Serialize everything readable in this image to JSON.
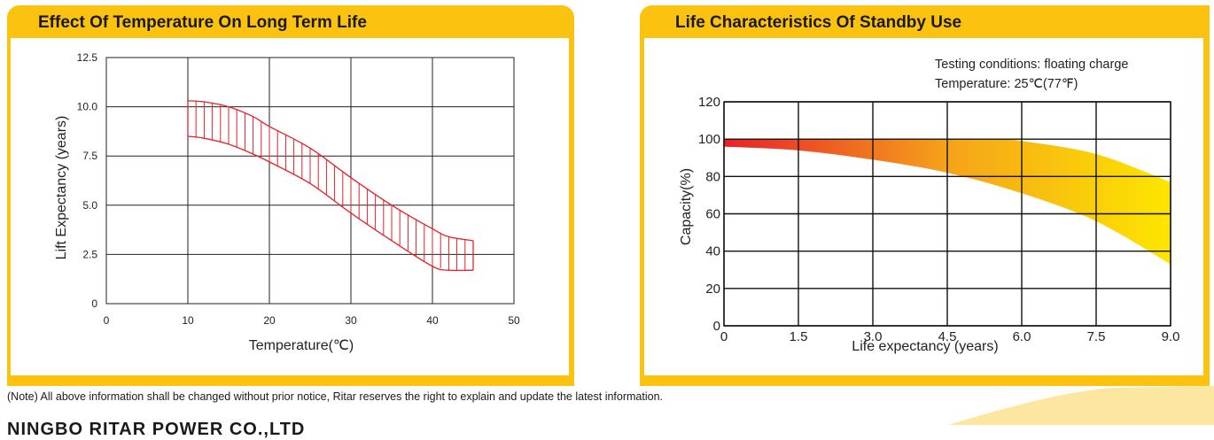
{
  "note": "(Note) All above information shall be changed without prior notice, Ritar reserves the right to explain and update the latest information.",
  "company": "NINGBO RITAR POWER CO.,LTD",
  "colors": {
    "accent": "#fbc20f",
    "band_red": "#e8202a",
    "grad_start": "#e8202a",
    "grad_mid": "#f5a31a",
    "grad_end": "#fde600"
  },
  "chart_data": [
    {
      "type": "area",
      "title": "Effect Of Temperature On Long Term Life",
      "xlabel": "Temperature(℃)",
      "ylabel": "Lift Expectancy  (years)",
      "xlim": [
        0,
        50
      ],
      "ylim": [
        0,
        12.5
      ],
      "x_ticks": [
        "0",
        "10",
        "20",
        "30",
        "40",
        "50"
      ],
      "y_ticks": [
        "0",
        "2.5",
        "5.0",
        "7.5",
        "10.0",
        "12.5"
      ],
      "grid": true,
      "series": [
        {
          "name": "upper",
          "x": [
            10,
            12,
            15,
            18,
            20,
            25,
            30,
            35,
            40,
            42,
            45
          ],
          "values": [
            10.3,
            10.25,
            10.0,
            9.5,
            9.0,
            7.9,
            6.4,
            5.0,
            3.8,
            3.4,
            3.2
          ]
        },
        {
          "name": "lower",
          "x": [
            10,
            12,
            15,
            18,
            20,
            25,
            30,
            35,
            40,
            42,
            45
          ],
          "values": [
            8.5,
            8.4,
            8.1,
            7.6,
            7.2,
            6.1,
            4.6,
            3.2,
            1.9,
            1.7,
            1.7
          ]
        }
      ]
    },
    {
      "type": "area",
      "title": "Life Characteristics Of Standby Use",
      "annotations": [
        "Testing conditions: floating charge",
        "Temperature: 25℃(77℉)"
      ],
      "xlabel": "Life expectancy (years)",
      "ylabel": "Capacity(%)",
      "xlim": [
        0,
        9.0
      ],
      "ylim": [
        0,
        120
      ],
      "x_ticks": [
        "0",
        "1.5",
        "3.0",
        "4.5",
        "6.0",
        "7.5",
        "9.0"
      ],
      "y_ticks": [
        "0",
        "20",
        "40",
        "60",
        "80",
        "100",
        "120"
      ],
      "grid": true,
      "series": [
        {
          "name": "upper",
          "x": [
            0,
            1.5,
            3.0,
            4.5,
            5.5,
            6.0,
            7.5,
            9.0
          ],
          "values": [
            100,
            100,
            100,
            100,
            100,
            99,
            92,
            77
          ]
        },
        {
          "name": "lower",
          "x": [
            0,
            1.5,
            3.0,
            4.5,
            6.0,
            7.5,
            9.0
          ],
          "values": [
            96,
            94,
            89,
            82,
            71,
            56,
            33
          ]
        }
      ]
    }
  ]
}
